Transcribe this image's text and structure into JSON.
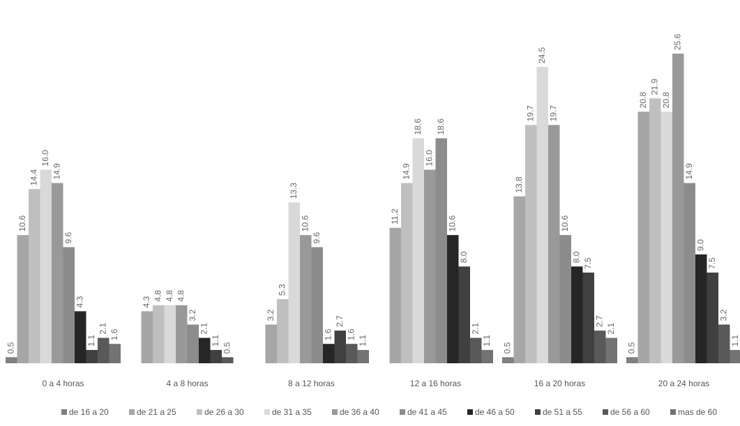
{
  "chart_data": {
    "type": "bar",
    "categories": [
      "0 a 4 horas",
      "4 a 8 horas",
      "8 a 12 horas",
      "12 a 16 horas",
      "16 a 20 horas",
      "20 a 24 horas"
    ],
    "ylim": [
      0,
      26
    ],
    "series": [
      {
        "name": "de 16 a 20",
        "color": "#7f7f7f",
        "values": [
          0.5,
          null,
          null,
          null,
          0.5,
          0.5
        ],
        "value_labels": [
          "0.5",
          null,
          null,
          null,
          "0.5",
          "0.5"
        ]
      },
      {
        "name": "de 21 a 25",
        "color": "#a6a6a6",
        "values": [
          10.6,
          4.3,
          3.2,
          11.2,
          13.8,
          20.8
        ],
        "value_labels": [
          "10.6",
          "4.3",
          "3.2",
          "11.2",
          "13.8",
          "20.8"
        ]
      },
      {
        "name": "de 26 a 30",
        "color": "#bfbfbf",
        "values": [
          14.4,
          4.8,
          5.3,
          14.9,
          19.7,
          21.9
        ],
        "value_labels": [
          "14.4",
          "4.8",
          "5.3",
          "14.9",
          "19.7",
          "21.9"
        ]
      },
      {
        "name": "de 31 a 35",
        "color": "#d9d9d9",
        "values": [
          16.0,
          4.8,
          13.3,
          18.6,
          24.5,
          20.8
        ],
        "value_labels": [
          "16.0",
          "4.8",
          "13.3",
          "18.6",
          "24.5",
          "20.8"
        ]
      },
      {
        "name": "de 36 a 40",
        "color": "#999999",
        "values": [
          14.9,
          4.8,
          10.6,
          16.0,
          19.7,
          25.6
        ],
        "value_labels": [
          "14.9",
          "4.8",
          "10.6",
          "16.0",
          "19.7",
          "25.6"
        ]
      },
      {
        "name": "de 41 a 45",
        "color": "#8c8c8c",
        "values": [
          9.6,
          3.2,
          9.6,
          18.6,
          10.6,
          14.9
        ],
        "value_labels": [
          "9.6",
          "3.2",
          "9.6",
          "18.6",
          "10.6",
          "14.9"
        ]
      },
      {
        "name": "de 46 a 50",
        "color": "#262626",
        "values": [
          4.3,
          2.1,
          1.6,
          10.6,
          8.0,
          9.0
        ],
        "value_labels": [
          "4.3",
          "2.1",
          "1.6",
          "10.6",
          "8.0",
          "9.0"
        ]
      },
      {
        "name": "de 51 a 55",
        "color": "#404040",
        "values": [
          1.1,
          1.1,
          2.7,
          8.0,
          7.5,
          7.5
        ],
        "value_labels": [
          "1.1",
          "1.1",
          "2.7",
          "8.0",
          "7.5",
          "7.5"
        ]
      },
      {
        "name": "de 56 a 60",
        "color": "#595959",
        "values": [
          2.1,
          0.5,
          1.6,
          2.1,
          2.7,
          3.2
        ],
        "value_labels": [
          "2.1",
          "0.5",
          "1.6",
          "2.1",
          "2.7",
          "3.2"
        ]
      },
      {
        "name": "mas de 60",
        "color": "#737373",
        "values": [
          1.6,
          null,
          1.1,
          1.1,
          2.1,
          1.1
        ],
        "value_labels": [
          "1.6",
          null,
          "1.1",
          "1.1",
          "2.1",
          "1.1"
        ]
      }
    ]
  }
}
